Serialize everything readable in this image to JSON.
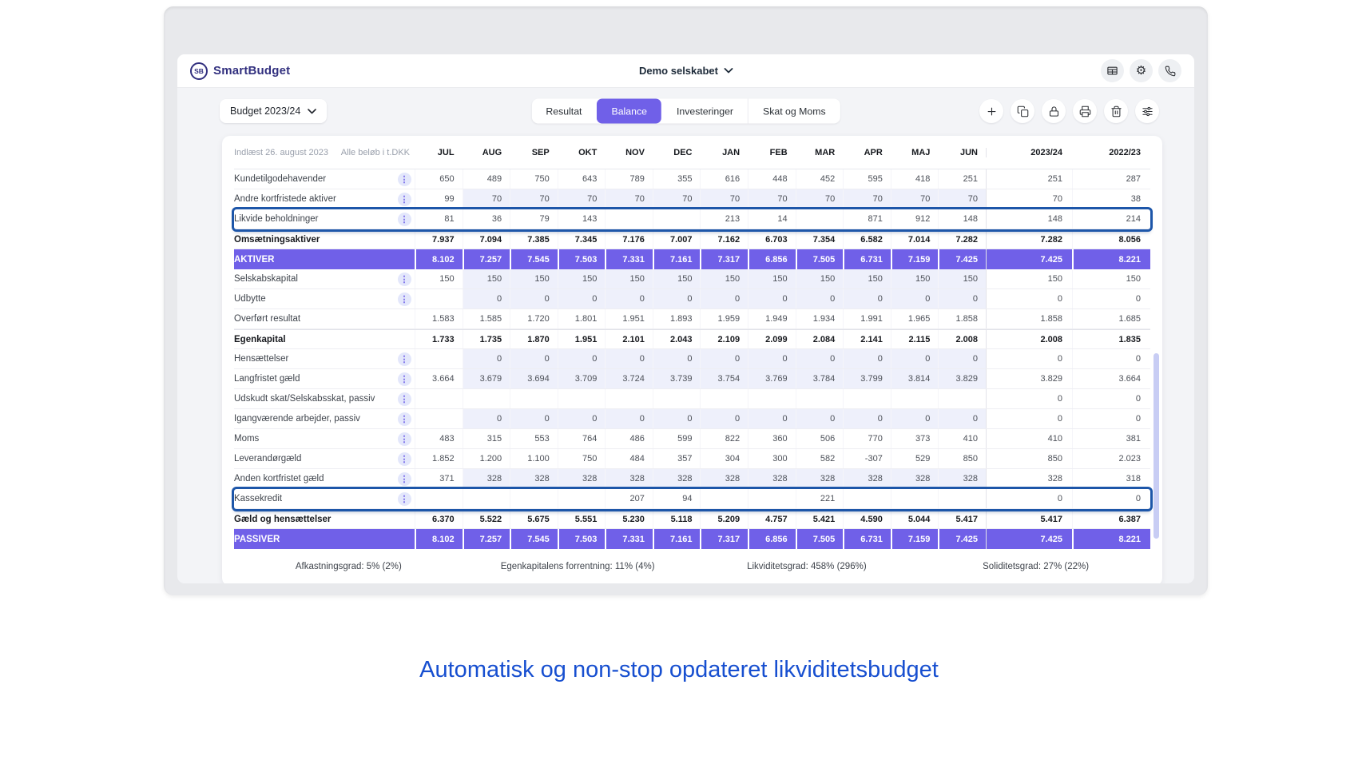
{
  "header": {
    "logo_text": "SmartBudget",
    "logo_monogram": "SB",
    "company_selector": "Demo selskabet",
    "icons": [
      "table-view-icon",
      "settings-gear-icon",
      "phone-icon"
    ]
  },
  "toolbar": {
    "budget_selector": "Budget 2023/24",
    "tabs": [
      {
        "label": "Resultat",
        "active": false
      },
      {
        "label": "Balance",
        "active": true
      },
      {
        "label": "Investeringer",
        "active": false
      },
      {
        "label": "Skat og Moms",
        "active": false
      }
    ],
    "action_icons": [
      "add-icon",
      "duplicate-icon",
      "lock-icon",
      "print-icon",
      "delete-icon",
      "adjust-columns-icon"
    ]
  },
  "table": {
    "loaded_label": "Indlæst 26. august 2023",
    "unit_label": "Alle beløb i t.DKK",
    "columns": [
      "JUL",
      "AUG",
      "SEP",
      "OKT",
      "NOV",
      "DEC",
      "JAN",
      "FEB",
      "MAR",
      "APR",
      "MAJ",
      "JUN",
      "2023/24",
      "2022/23"
    ],
    "rows": [
      {
        "label": "Kundetilgodehavender",
        "style": "normal",
        "kebab": true,
        "shaded": false,
        "highlighted": false,
        "values": [
          "650",
          "489",
          "750",
          "643",
          "789",
          "355",
          "616",
          "448",
          "452",
          "595",
          "418",
          "251",
          "251",
          "287"
        ]
      },
      {
        "label": "Andre kortfristede aktiver",
        "style": "normal",
        "kebab": true,
        "shaded": true,
        "highlighted": false,
        "values": [
          "99",
          "70",
          "70",
          "70",
          "70",
          "70",
          "70",
          "70",
          "70",
          "70",
          "70",
          "70",
          "70",
          "38"
        ]
      },
      {
        "label": "Likvide beholdninger",
        "style": "normal",
        "kebab": true,
        "shaded": false,
        "highlighted": true,
        "values": [
          "81",
          "36",
          "79",
          "143",
          "",
          "",
          "213",
          "14",
          "",
          "871",
          "912",
          "148",
          "148",
          "214"
        ]
      },
      {
        "label": "Omsætningsaktiver",
        "style": "bold",
        "kebab": false,
        "shaded": false,
        "highlighted": false,
        "values": [
          "7.937",
          "7.094",
          "7.385",
          "7.345",
          "7.176",
          "7.007",
          "7.162",
          "6.703",
          "7.354",
          "6.582",
          "7.014",
          "7.282",
          "7.282",
          "8.056"
        ]
      },
      {
        "label": "AKTIVER",
        "style": "accent",
        "kebab": false,
        "shaded": false,
        "highlighted": false,
        "values": [
          "8.102",
          "7.257",
          "7.545",
          "7.503",
          "7.331",
          "7.161",
          "7.317",
          "6.856",
          "7.505",
          "6.731",
          "7.159",
          "7.425",
          "7.425",
          "8.221"
        ]
      },
      {
        "label": "Selskabskapital",
        "style": "normal",
        "kebab": true,
        "shaded": true,
        "highlighted": false,
        "values": [
          "150",
          "150",
          "150",
          "150",
          "150",
          "150",
          "150",
          "150",
          "150",
          "150",
          "150",
          "150",
          "150",
          "150"
        ]
      },
      {
        "label": "Udbytte",
        "style": "normal",
        "kebab": true,
        "shaded": true,
        "highlighted": false,
        "values": [
          "",
          "0",
          "0",
          "0",
          "0",
          "0",
          "0",
          "0",
          "0",
          "0",
          "0",
          "0",
          "0",
          "0"
        ]
      },
      {
        "label": "Overført resultat",
        "style": "normal",
        "kebab": false,
        "shaded": false,
        "highlighted": false,
        "values": [
          "1.583",
          "1.585",
          "1.720",
          "1.801",
          "1.951",
          "1.893",
          "1.959",
          "1.949",
          "1.934",
          "1.991",
          "1.965",
          "1.858",
          "1.858",
          "1.685"
        ]
      },
      {
        "label": "Egenkapital",
        "style": "bold",
        "kebab": false,
        "shaded": false,
        "highlighted": false,
        "values": [
          "1.733",
          "1.735",
          "1.870",
          "1.951",
          "2.101",
          "2.043",
          "2.109",
          "2.099",
          "2.084",
          "2.141",
          "2.115",
          "2.008",
          "2.008",
          "1.835"
        ]
      },
      {
        "label": "Hensættelser",
        "style": "normal",
        "kebab": true,
        "shaded": true,
        "highlighted": false,
        "values": [
          "",
          "0",
          "0",
          "0",
          "0",
          "0",
          "0",
          "0",
          "0",
          "0",
          "0",
          "0",
          "0",
          "0"
        ]
      },
      {
        "label": "Langfristet gæld",
        "style": "normal",
        "kebab": true,
        "shaded": true,
        "highlighted": false,
        "values": [
          "3.664",
          "3.679",
          "3.694",
          "3.709",
          "3.724",
          "3.739",
          "3.754",
          "3.769",
          "3.784",
          "3.799",
          "3.814",
          "3.829",
          "3.829",
          "3.664"
        ]
      },
      {
        "label": "Udskudt skat/Selskabsskat, passiv",
        "style": "normal",
        "kebab": true,
        "shaded": false,
        "highlighted": false,
        "values": [
          "",
          "",
          "",
          "",
          "",
          "",
          "",
          "",
          "",
          "",
          "",
          "",
          "0",
          "0"
        ]
      },
      {
        "label": "Igangværende arbejder, passiv",
        "style": "normal",
        "kebab": true,
        "shaded": true,
        "highlighted": false,
        "values": [
          "",
          "0",
          "0",
          "0",
          "0",
          "0",
          "0",
          "0",
          "0",
          "0",
          "0",
          "0",
          "0",
          "0"
        ]
      },
      {
        "label": "Moms",
        "style": "normal",
        "kebab": true,
        "shaded": false,
        "highlighted": false,
        "values": [
          "483",
          "315",
          "553",
          "764",
          "486",
          "599",
          "822",
          "360",
          "506",
          "770",
          "373",
          "410",
          "410",
          "381"
        ]
      },
      {
        "label": "Leverandørgæld",
        "style": "normal",
        "kebab": true,
        "shaded": false,
        "highlighted": false,
        "values": [
          "1.852",
          "1.200",
          "1.100",
          "750",
          "484",
          "357",
          "304",
          "300",
          "582",
          "-307",
          "529",
          "850",
          "850",
          "2.023"
        ]
      },
      {
        "label": "Anden kortfristet gæld",
        "style": "normal",
        "kebab": true,
        "shaded": true,
        "highlighted": false,
        "values": [
          "371",
          "328",
          "328",
          "328",
          "328",
          "328",
          "328",
          "328",
          "328",
          "328",
          "328",
          "328",
          "328",
          "318"
        ]
      },
      {
        "label": "Kassekredit",
        "style": "normal",
        "kebab": true,
        "shaded": false,
        "highlighted": true,
        "values": [
          "",
          "",
          "",
          "",
          "207",
          "94",
          "",
          "",
          "221",
          "",
          "",
          "",
          "0",
          "0"
        ]
      },
      {
        "label": "Gæld og hensættelser",
        "style": "bold",
        "kebab": false,
        "shaded": false,
        "highlighted": false,
        "values": [
          "6.370",
          "5.522",
          "5.675",
          "5.551",
          "5.230",
          "5.118",
          "5.209",
          "4.757",
          "5.421",
          "4.590",
          "5.044",
          "5.417",
          "5.417",
          "6.387"
        ]
      },
      {
        "label": "PASSIVER",
        "style": "accent",
        "kebab": false,
        "shaded": false,
        "highlighted": false,
        "values": [
          "8.102",
          "7.257",
          "7.545",
          "7.503",
          "7.331",
          "7.161",
          "7.317",
          "6.856",
          "7.505",
          "6.731",
          "7.159",
          "7.425",
          "7.425",
          "8.221"
        ]
      }
    ]
  },
  "footer_stats": [
    {
      "label": "Afkastningsgrad",
      "value": "5% (2%)"
    },
    {
      "label": "Egenkapitalens forrentning",
      "value": "11% (4%)"
    },
    {
      "label": "Likviditetsgrad",
      "value": "458% (296%)"
    },
    {
      "label": "Soliditetsgrad",
      "value": "27% (22%)"
    }
  ],
  "caption": "Automatisk og non-stop opdateret likviditetsbudget",
  "colors": {
    "accent": "#7060e8",
    "highlight": "#1d56a9",
    "caption": "#174fd0",
    "shade": "#eef0fb"
  }
}
